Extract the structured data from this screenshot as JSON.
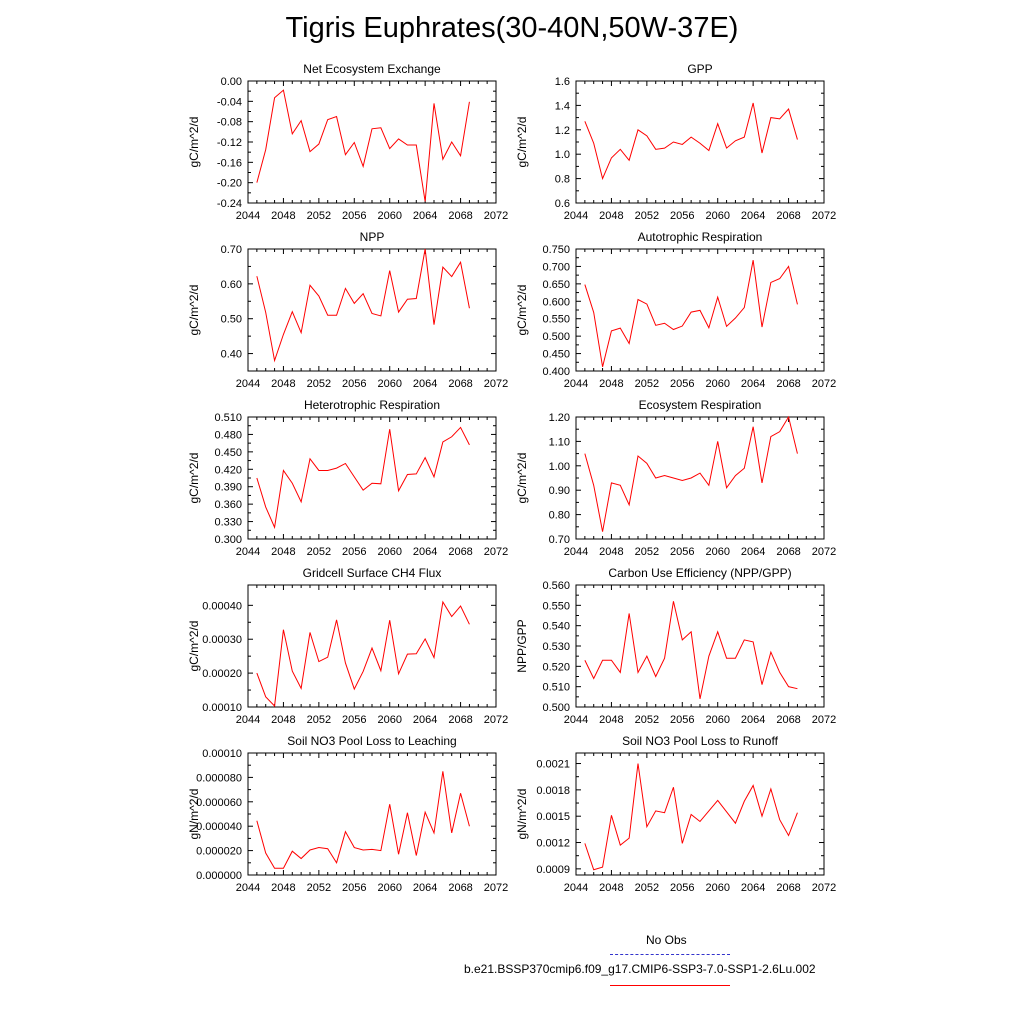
{
  "title": "Tigris Euphrates(30-40N,50W-37E)",
  "legend": {
    "obs": {
      "label": "No Obs",
      "color": "#3333cc"
    },
    "model": {
      "label": "b.e21.BSSP370cmip6.f09_g17.CMIP6-SSP3-7.0-SSP1-2.6Lu.002",
      "color": "#ff0000"
    }
  },
  "chart_data": [
    {
      "type": "line",
      "title": "Net Ecosystem Exchange",
      "ylabel": "gC/m^2/d",
      "xlim": [
        2044,
        2072
      ],
      "xticks": [
        "2044",
        "2048",
        "2052",
        "2056",
        "2060",
        "2064",
        "2068",
        "2072"
      ],
      "ylim": [
        -0.24,
        0.0
      ],
      "yticks": [
        "-0.24",
        "-0.20",
        "-0.16",
        "-0.12",
        "-0.08",
        "-0.04",
        "0.00"
      ],
      "x": [
        2045,
        2046,
        2047,
        2048,
        2049,
        2050,
        2051,
        2052,
        2053,
        2054,
        2055,
        2056,
        2057,
        2058,
        2059,
        2060,
        2061,
        2062,
        2063,
        2064,
        2065,
        2066,
        2067,
        2068,
        2069
      ],
      "series": [
        {
          "color": "#ff0000",
          "values": [
            -0.2,
            -0.135,
            -0.033,
            -0.018,
            -0.104,
            -0.078,
            -0.139,
            -0.124,
            -0.076,
            -0.07,
            -0.145,
            -0.121,
            -0.168,
            -0.094,
            -0.092,
            -0.133,
            -0.114,
            -0.126,
            -0.126,
            -0.237,
            -0.044,
            -0.154,
            -0.12,
            -0.147,
            -0.041
          ]
        }
      ]
    },
    {
      "type": "line",
      "title": "GPP",
      "ylabel": "gC/m^2/d",
      "xlim": [
        2044,
        2072
      ],
      "xticks": [
        "2044",
        "2048",
        "2052",
        "2056",
        "2060",
        "2064",
        "2068",
        "2072"
      ],
      "ylim": [
        0.6,
        1.6
      ],
      "yticks": [
        "0.6",
        "0.8",
        "1.0",
        "1.2",
        "1.4",
        "1.6"
      ],
      "x": [
        2045,
        2046,
        2047,
        2048,
        2049,
        2050,
        2051,
        2052,
        2053,
        2054,
        2055,
        2056,
        2057,
        2058,
        2059,
        2060,
        2061,
        2062,
        2063,
        2064,
        2065,
        2066,
        2067,
        2068,
        2069
      ],
      "series": [
        {
          "color": "#ff0000",
          "values": [
            1.27,
            1.09,
            0.8,
            0.97,
            1.04,
            0.95,
            1.2,
            1.15,
            1.04,
            1.05,
            1.1,
            1.08,
            1.14,
            1.09,
            1.03,
            1.25,
            1.05,
            1.11,
            1.14,
            1.42,
            1.01,
            1.3,
            1.29,
            1.37,
            1.12
          ]
        }
      ]
    },
    {
      "type": "line",
      "title": "NPP",
      "ylabel": "gC/m^2/d",
      "xlim": [
        2044,
        2072
      ],
      "xticks": [
        "2044",
        "2048",
        "2052",
        "2056",
        "2060",
        "2064",
        "2068",
        "2072"
      ],
      "ylim": [
        0.35,
        0.7
      ],
      "yticks": [
        "0.40",
        "0.50",
        "0.60",
        "0.70"
      ],
      "x": [
        2045,
        2046,
        2047,
        2048,
        2049,
        2050,
        2051,
        2052,
        2053,
        2054,
        2055,
        2056,
        2057,
        2058,
        2059,
        2060,
        2061,
        2062,
        2063,
        2064,
        2065,
        2066,
        2067,
        2068,
        2069
      ],
      "series": [
        {
          "color": "#ff0000",
          "values": [
            0.622,
            0.518,
            0.38,
            0.455,
            0.52,
            0.46,
            0.596,
            0.565,
            0.51,
            0.51,
            0.587,
            0.544,
            0.572,
            0.515,
            0.508,
            0.638,
            0.519,
            0.556,
            0.558,
            0.7,
            0.483,
            0.648,
            0.621,
            0.662,
            0.53
          ]
        }
      ]
    },
    {
      "type": "line",
      "title": "Autotrophic Respiration",
      "ylabel": "gC/m^2/d",
      "xlim": [
        2044,
        2072
      ],
      "xticks": [
        "2044",
        "2048",
        "2052",
        "2056",
        "2060",
        "2064",
        "2068",
        "2072"
      ],
      "ylim": [
        0.4,
        0.75
      ],
      "yticks": [
        "0.400",
        "0.450",
        "0.500",
        "0.550",
        "0.600",
        "0.650",
        "0.700",
        "0.750"
      ],
      "x": [
        2045,
        2046,
        2047,
        2048,
        2049,
        2050,
        2051,
        2052,
        2053,
        2054,
        2055,
        2056,
        2057,
        2058,
        2059,
        2060,
        2061,
        2062,
        2063,
        2064,
        2065,
        2066,
        2067,
        2068,
        2069
      ],
      "series": [
        {
          "color": "#ff0000",
          "values": [
            0.648,
            0.568,
            0.412,
            0.515,
            0.523,
            0.479,
            0.605,
            0.592,
            0.531,
            0.537,
            0.519,
            0.529,
            0.569,
            0.574,
            0.524,
            0.612,
            0.528,
            0.552,
            0.582,
            0.718,
            0.526,
            0.654,
            0.665,
            0.7,
            0.591
          ]
        }
      ]
    },
    {
      "type": "line",
      "title": "Heterotrophic Respiration",
      "ylabel": "gC/m^2/d",
      "xlim": [
        2044,
        2072
      ],
      "xticks": [
        "2044",
        "2048",
        "2052",
        "2056",
        "2060",
        "2064",
        "2068",
        "2072"
      ],
      "ylim": [
        0.3,
        0.51
      ],
      "yticks": [
        "0.300",
        "0.330",
        "0.360",
        "0.390",
        "0.420",
        "0.450",
        "0.480",
        "0.510"
      ],
      "x": [
        2045,
        2046,
        2047,
        2048,
        2049,
        2050,
        2051,
        2052,
        2053,
        2054,
        2055,
        2056,
        2057,
        2058,
        2059,
        2060,
        2061,
        2062,
        2063,
        2064,
        2065,
        2066,
        2067,
        2068,
        2069
      ],
      "series": [
        {
          "color": "#ff0000",
          "values": [
            0.405,
            0.355,
            0.32,
            0.418,
            0.396,
            0.364,
            0.438,
            0.418,
            0.418,
            0.422,
            0.43,
            0.407,
            0.384,
            0.396,
            0.395,
            0.489,
            0.383,
            0.411,
            0.412,
            0.44,
            0.407,
            0.467,
            0.476,
            0.492,
            0.462
          ]
        }
      ]
    },
    {
      "type": "line",
      "title": "Ecosystem Respiration",
      "ylabel": "gC/m^2/d",
      "xlim": [
        2044,
        2072
      ],
      "xticks": [
        "2044",
        "2048",
        "2052",
        "2056",
        "2060",
        "2064",
        "2068",
        "2072"
      ],
      "ylim": [
        0.7,
        1.2
      ],
      "yticks": [
        "0.70",
        "0.80",
        "0.90",
        "1.00",
        "1.10",
        "1.20"
      ],
      "x": [
        2045,
        2046,
        2047,
        2048,
        2049,
        2050,
        2051,
        2052,
        2053,
        2054,
        2055,
        2056,
        2057,
        2058,
        2059,
        2060,
        2061,
        2062,
        2063,
        2064,
        2065,
        2066,
        2067,
        2068,
        2069
      ],
      "series": [
        {
          "color": "#ff0000",
          "values": [
            1.05,
            0.92,
            0.73,
            0.93,
            0.92,
            0.84,
            1.04,
            1.01,
            0.95,
            0.96,
            0.95,
            0.94,
            0.95,
            0.97,
            0.92,
            1.1,
            0.91,
            0.96,
            0.99,
            1.16,
            0.93,
            1.12,
            1.14,
            1.2,
            1.05
          ]
        }
      ]
    },
    {
      "type": "line",
      "title": "Gridcell Surface CH4 Flux",
      "ylabel": "gC/m^2/d",
      "xlim": [
        2044,
        2072
      ],
      "xticks": [
        "2044",
        "2048",
        "2052",
        "2056",
        "2060",
        "2064",
        "2068",
        "2072"
      ],
      "ylim": [
        0.0001,
        0.00046
      ],
      "yticks": [
        "0.00010",
        "0.00020",
        "0.00030",
        "0.00040"
      ],
      "x": [
        2045,
        2046,
        2047,
        2048,
        2049,
        2050,
        2051,
        2052,
        2053,
        2054,
        2055,
        2056,
        2057,
        2058,
        2059,
        2060,
        2061,
        2062,
        2063,
        2064,
        2065,
        2066,
        2067,
        2068,
        2069
      ],
      "series": [
        {
          "color": "#ff0000",
          "values": [
            0.0002,
            0.00013,
            0.000103,
            0.000328,
            0.000206,
            0.000155,
            0.00032,
            0.000234,
            0.000247,
            0.000357,
            0.00023,
            0.000153,
            0.000205,
            0.000274,
            0.000207,
            0.000356,
            0.000198,
            0.000256,
            0.000257,
            0.000301,
            0.000246,
            0.00041,
            0.000367,
            0.000398,
            0.000344
          ]
        }
      ]
    },
    {
      "type": "line",
      "title": "Carbon Use Efficiency (NPP/GPP)",
      "ylabel": "NPP/GPP",
      "xlim": [
        2044,
        2072
      ],
      "xticks": [
        "2044",
        "2048",
        "2052",
        "2056",
        "2060",
        "2064",
        "2068",
        "2072"
      ],
      "ylim": [
        0.5,
        0.56
      ],
      "yticks": [
        "0.500",
        "0.510",
        "0.520",
        "0.530",
        "0.540",
        "0.550",
        "0.560"
      ],
      "x": [
        2045,
        2046,
        2047,
        2048,
        2049,
        2050,
        2051,
        2052,
        2053,
        2054,
        2055,
        2056,
        2057,
        2058,
        2059,
        2060,
        2061,
        2062,
        2063,
        2064,
        2065,
        2066,
        2067,
        2068,
        2069
      ],
      "series": [
        {
          "color": "#ff0000",
          "values": [
            0.523,
            0.514,
            0.523,
            0.523,
            0.517,
            0.546,
            0.517,
            0.525,
            0.515,
            0.524,
            0.552,
            0.533,
            0.537,
            0.504,
            0.525,
            0.537,
            0.524,
            0.524,
            0.533,
            0.532,
            0.511,
            0.527,
            0.517,
            0.51,
            0.509
          ]
        }
      ]
    },
    {
      "type": "line",
      "title": "Soil NO3 Pool Loss to Leaching",
      "ylabel": "gN/m^2/d",
      "xlim": [
        2044,
        2072
      ],
      "xticks": [
        "2044",
        "2048",
        "2052",
        "2056",
        "2060",
        "2064",
        "2068",
        "2072"
      ],
      "ylim": [
        0.0,
        0.0001
      ],
      "yticks": [
        "0.000000",
        "0.000020",
        "0.000040",
        "0.000060",
        "0.000080",
        "0.00010"
      ],
      "x": [
        2045,
        2046,
        2047,
        2048,
        2049,
        2050,
        2051,
        2052,
        2053,
        2054,
        2055,
        2056,
        2057,
        2058,
        2059,
        2060,
        2061,
        2062,
        2063,
        2064,
        2065,
        2066,
        2067,
        2068,
        2069
      ],
      "series": [
        {
          "color": "#ff0000",
          "values": [
            4.45e-05,
            1.8e-05,
            5.5e-06,
            5.5e-06,
            1.95e-05,
            1.35e-05,
            2.05e-05,
            2.25e-05,
            2.15e-05,
            1e-05,
            3.55e-05,
            2.25e-05,
            2.05e-05,
            2.1e-05,
            2e-05,
            5.8e-05,
            1.7e-05,
            5.1e-05,
            1.6e-05,
            5.15e-05,
            3.45e-05,
            8.5e-05,
            3.45e-05,
            6.7e-05,
            4e-05
          ]
        }
      ]
    },
    {
      "type": "line",
      "title": "Soil NO3 Pool Loss to Runoff",
      "ylabel": "gN/m^2/d",
      "xlim": [
        2044,
        2072
      ],
      "xticks": [
        "2044",
        "2048",
        "2052",
        "2056",
        "2060",
        "2064",
        "2068",
        "2072"
      ],
      "ylim": [
        0.00083,
        0.00222
      ],
      "yticks": [
        "0.0009",
        "0.0012",
        "0.0015",
        "0.0018",
        "0.0021"
      ],
      "x": [
        2045,
        2046,
        2047,
        2048,
        2049,
        2050,
        2051,
        2052,
        2053,
        2054,
        2055,
        2056,
        2057,
        2058,
        2059,
        2060,
        2061,
        2062,
        2063,
        2064,
        2065,
        2066,
        2067,
        2068,
        2069
      ],
      "series": [
        {
          "color": "#ff0000",
          "values": [
            0.00119,
            0.00089,
            0.00092,
            0.00151,
            0.00117,
            0.00125,
            0.0021,
            0.00138,
            0.00156,
            0.00154,
            0.00183,
            0.00119,
            0.00152,
            0.00144,
            0.00156,
            0.00168,
            0.00155,
            0.00142,
            0.00167,
            0.00185,
            0.0015,
            0.00181,
            0.00146,
            0.00128,
            0.00154
          ]
        }
      ]
    }
  ]
}
